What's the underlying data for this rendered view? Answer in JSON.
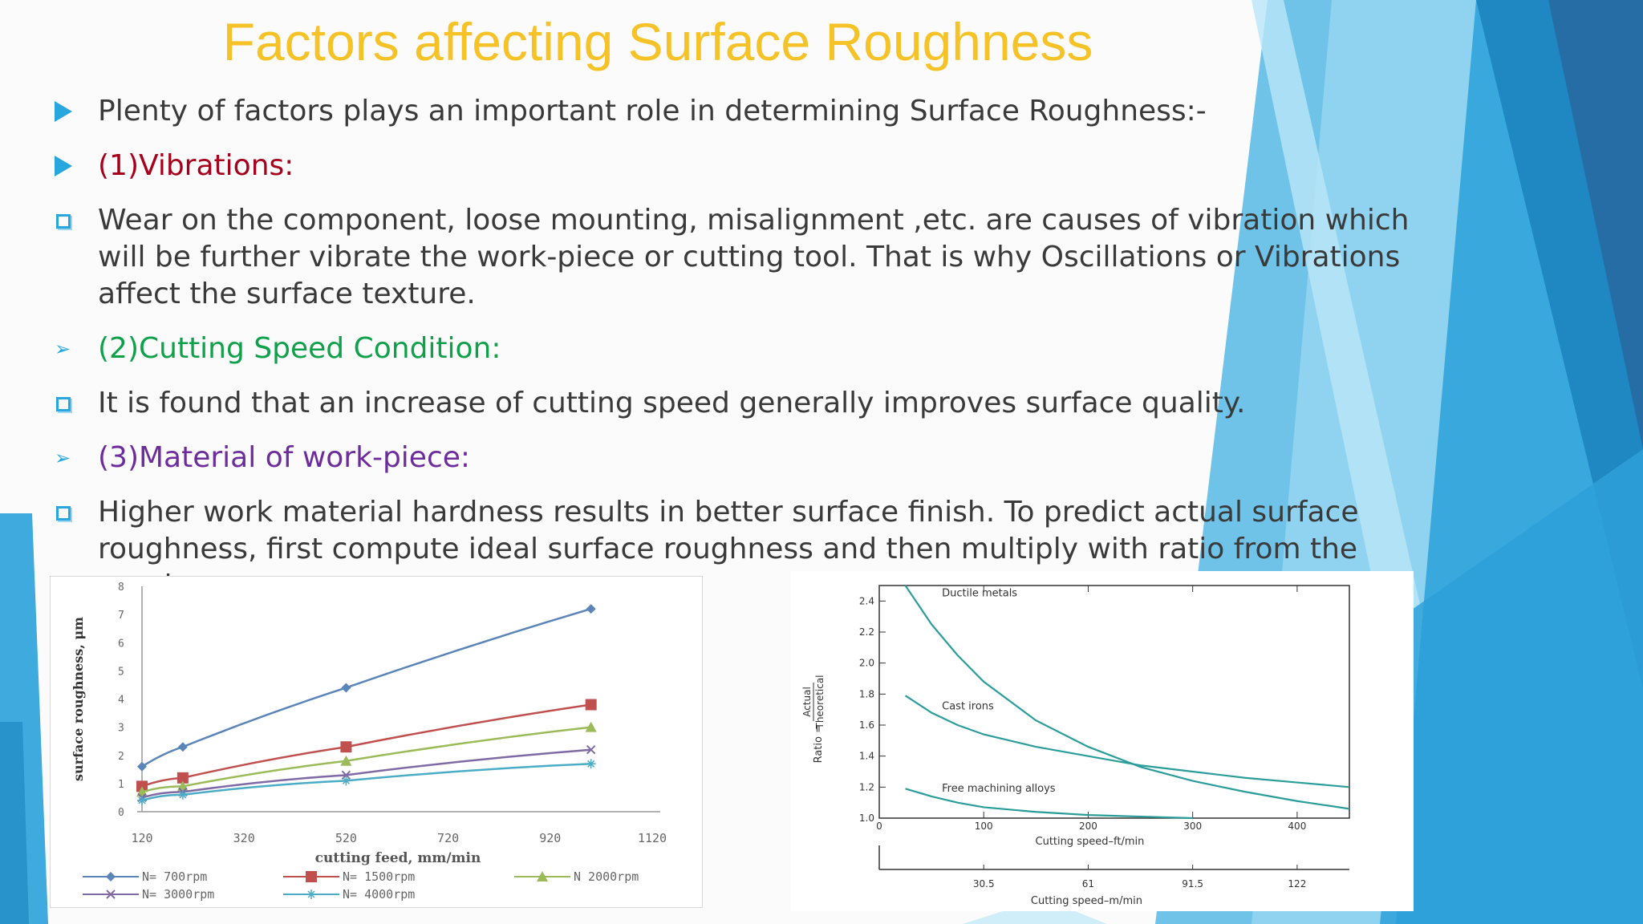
{
  "slide": {
    "title": "Factors affecting Surface Roughness",
    "bullets": [
      {
        "marker": "triangle",
        "style": "normal",
        "text": "Plenty of factors plays an important role in determining Surface Roughness:-"
      },
      {
        "marker": "triangle",
        "style": "red",
        "text": "(1)Vibrations:"
      },
      {
        "marker": "square",
        "style": "normal",
        "text": "Wear on the component, loose mounting, misalignment ,etc. are causes of vibration which will be further vibrate the work-piece or cutting tool. That is why Oscillations or Vibrations affect the surface texture."
      },
      {
        "marker": "arrow",
        "style": "green",
        "text": "(2)Cutting Speed Condition:"
      },
      {
        "marker": "square",
        "style": "normal",
        "text": "It is found that an increase of cutting speed generally improves surface quality."
      },
      {
        "marker": "arrow",
        "style": "purple",
        "text": "(3)Material of work-piece:"
      },
      {
        "marker": "square",
        "style": "normal",
        "text": "Higher work material hardness results in better surface finish. To predict actual surface roughness, first compute ideal surface roughness and then multiply with ratio from the graph."
      }
    ]
  },
  "colors": {
    "title": "#f5c227",
    "bullet_marker": "#28a7df",
    "red": "#a5001c",
    "green": "#0ea14a",
    "purple": "#6c2c9c"
  },
  "chart_data": [
    {
      "type": "line",
      "xlabel": "cutting feed, mm/min",
      "ylabel": "surface roughness, μm",
      "xlim": [
        120,
        1120
      ],
      "ylim": [
        0,
        8
      ],
      "xticks": [
        "120",
        "320",
        "520",
        "720",
        "920",
        "1120"
      ],
      "yticks": [
        "0",
        "1",
        "2",
        "3",
        "4",
        "5",
        "6",
        "7",
        "8"
      ],
      "x": [
        120,
        200,
        520,
        1000
      ],
      "series": [
        {
          "name": "N= 700rpm",
          "color": "#5b85b8",
          "marker": "diamond",
          "values": [
            1.6,
            2.3,
            4.4,
            7.2
          ]
        },
        {
          "name": "N= 1500rpm",
          "color": "#c0504d",
          "marker": "square",
          "values": [
            0.9,
            1.2,
            2.3,
            3.8
          ]
        },
        {
          "name": "N 2000rpm",
          "color": "#9bbb59",
          "marker": "triangle",
          "values": [
            0.7,
            0.9,
            1.8,
            3.0
          ]
        },
        {
          "name": "N= 3000rpm",
          "color": "#7f6aa6",
          "marker": "x",
          "values": [
            0.5,
            0.7,
            1.3,
            2.2
          ]
        },
        {
          "name": "N= 4000rpm",
          "color": "#4bacc6",
          "marker": "star",
          "values": [
            0.4,
            0.6,
            1.1,
            1.7
          ]
        }
      ],
      "grid": false,
      "legend": "bottom"
    },
    {
      "type": "line",
      "xlabel": "Cutting speed–ft/min",
      "xlabel2": "Cutting speed–m/min",
      "ylabel": "Ratio = Actual / Theoretical",
      "ylabel_prefix": "Ratio =",
      "ylabel_num": "Actual",
      "ylabel_den": "Theoretical",
      "xlim": [
        0,
        450
      ],
      "ylim": [
        1.0,
        2.5
      ],
      "xticks": [
        "0",
        "100",
        "200",
        "300",
        "400"
      ],
      "xticks2": [
        "30.5",
        "61",
        "91.5",
        "122"
      ],
      "yticks": [
        "1.0",
        "1.2",
        "1.4",
        "1.6",
        "1.8",
        "2.0",
        "2.2",
        "2.4"
      ],
      "color": "#2a9d9a",
      "series": [
        {
          "name": "Ductile metals",
          "x": [
            25,
            50,
            75,
            100,
            150,
            200,
            250,
            300,
            350,
            400,
            450
          ],
          "values": [
            2.5,
            2.25,
            2.05,
            1.88,
            1.63,
            1.46,
            1.33,
            1.24,
            1.17,
            1.11,
            1.06
          ]
        },
        {
          "name": "Cast irons",
          "x": [
            25,
            50,
            75,
            100,
            150,
            200,
            250,
            300,
            350,
            400,
            450
          ],
          "values": [
            1.79,
            1.68,
            1.6,
            1.54,
            1.46,
            1.4,
            1.34,
            1.3,
            1.26,
            1.23,
            1.2
          ]
        },
        {
          "name": "Free machining alloys",
          "x": [
            25,
            50,
            75,
            100,
            150,
            200,
            250,
            300
          ],
          "values": [
            1.19,
            1.14,
            1.1,
            1.07,
            1.04,
            1.02,
            1.01,
            1.0
          ]
        }
      ],
      "grid": false,
      "legend": "inline labels"
    }
  ]
}
